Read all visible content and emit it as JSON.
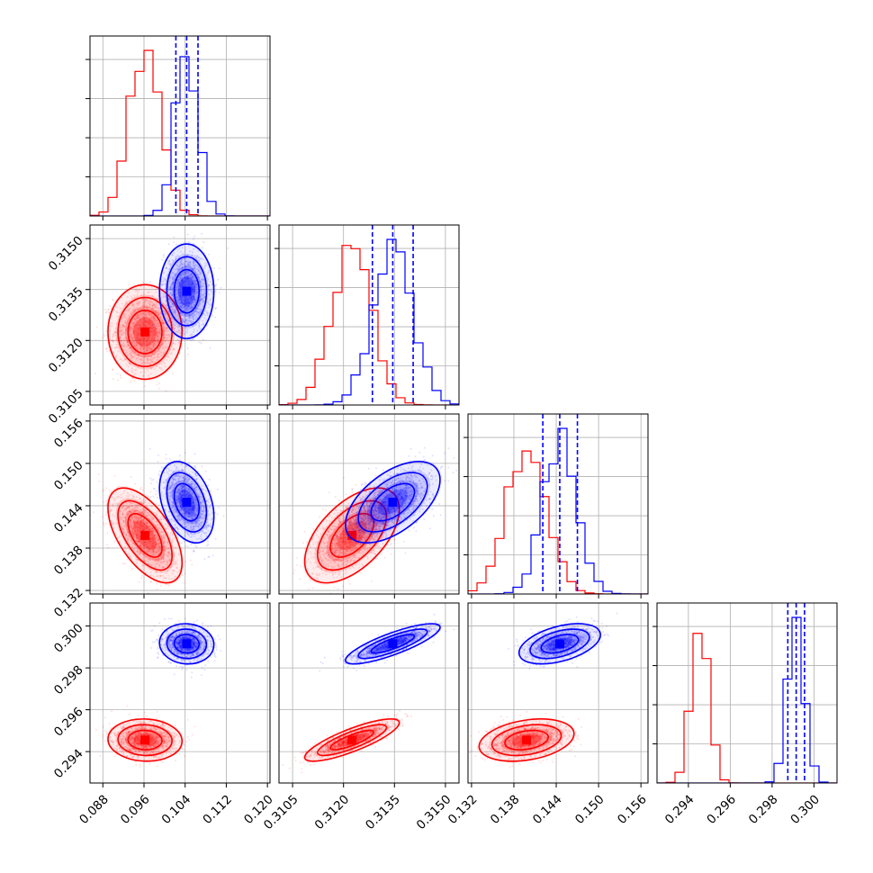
{
  "chart_data": {
    "type": "corner",
    "title": "",
    "grid": true,
    "parameters": [
      {
        "ticks": [
          "0.088",
          "0.096",
          "0.104",
          "0.112",
          "0.120"
        ],
        "ticks_num": [
          0.088,
          0.096,
          0.104,
          0.112,
          0.12
        ],
        "range": [
          0.0855,
          0.1205
        ]
      },
      {
        "ticks": [
          "0.3105",
          "0.3120",
          "0.3135",
          "0.3150"
        ],
        "ticks_num": [
          0.3105,
          0.312,
          0.3135,
          0.315
        ],
        "range": [
          0.3101,
          0.3154
        ]
      },
      {
        "ticks": [
          "0.132",
          "0.138",
          "0.144",
          "0.150",
          "0.156"
        ],
        "ticks_num": [
          0.132,
          0.138,
          0.144,
          0.15,
          0.156
        ],
        "range": [
          0.1315,
          0.157
        ]
      },
      {
        "ticks": [
          "0.294",
          "0.296",
          "0.298",
          "0.300"
        ],
        "ticks_num": [
          0.294,
          0.296,
          0.298,
          0.3
        ],
        "range": [
          0.2925,
          0.3011
        ]
      }
    ],
    "series": [
      {
        "color": "#ff0000",
        "mean": [
          0.0962,
          0.31225,
          0.1398,
          0.29455
        ],
        "std": [
          0.003,
          0.00058,
          0.0028,
          0.00042
        ],
        "corr": [
          [
            0,
            0,
            -0.58,
            -0.05
          ],
          [
            0,
            0,
            0.55,
            0.82
          ],
          [
            0,
            0,
            0,
            0.3
          ],
          [
            0,
            0,
            0,
            0
          ]
        ]
      },
      {
        "color": "#0000ff",
        "mean": [
          0.1043,
          0.31345,
          0.1445,
          0.29915
        ],
        "std": [
          0.0022,
          0.00058,
          0.0024,
          0.0004
        ],
        "corr": [
          [
            0,
            0,
            -0.35,
            -0.05
          ],
          [
            0,
            0,
            0.55,
            0.82
          ],
          [
            0,
            0,
            0,
            0.45
          ],
          [
            0,
            0,
            0,
            0
          ]
        ]
      }
    ],
    "quantile_lines": {
      "color": "#0000ff",
      "values": [
        [
          0.1022,
          0.1043,
          0.1065
        ],
        [
          0.31285,
          0.31345,
          0.31405
        ],
        [
          0.1421,
          0.1445,
          0.147
        ],
        [
          0.29875,
          0.29915,
          0.29955
        ]
      ]
    }
  }
}
